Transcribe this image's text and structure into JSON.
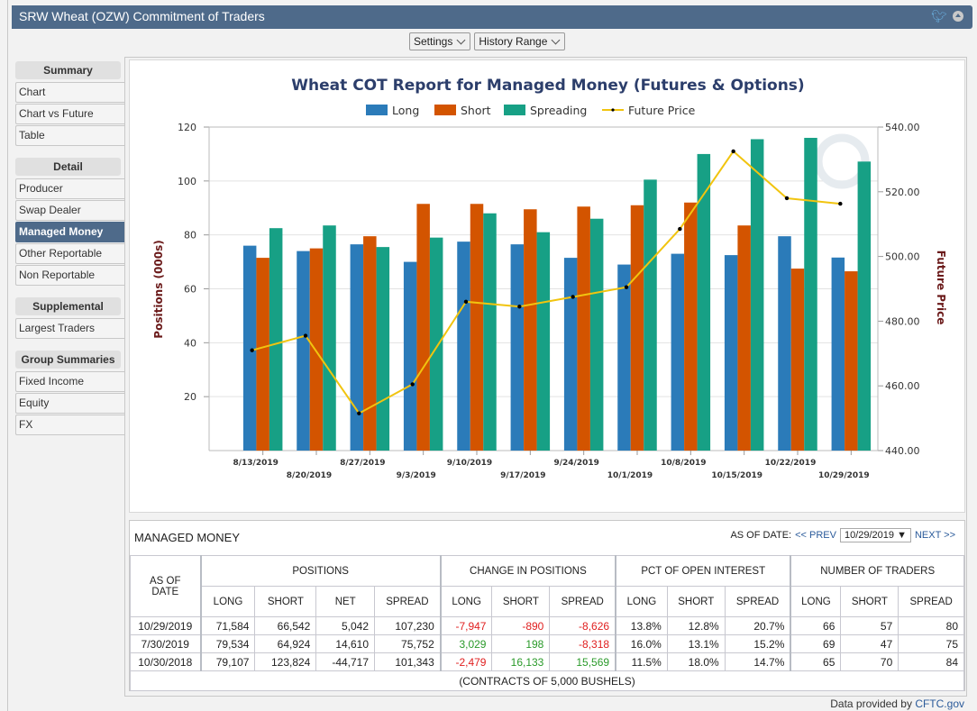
{
  "header": {
    "title": "SRW Wheat (OZW) Commitment of Traders",
    "icons": [
      "twitter-icon",
      "collapse-icon"
    ]
  },
  "toolbar": {
    "settings_label": "Settings",
    "history_label": "History Range"
  },
  "sidebar": {
    "sections": [
      {
        "heading": "Summary",
        "items": [
          "Chart",
          "Chart vs Future",
          "Table"
        ]
      },
      {
        "heading": "Detail",
        "items": [
          "Producer",
          "Swap Dealer",
          "Managed Money",
          "Other Reportable",
          "Non Reportable"
        ]
      },
      {
        "heading": "Supplemental",
        "items": [
          "Largest Traders"
        ]
      },
      {
        "heading": "Group Summaries",
        "items": [
          "Fixed Income",
          "Equity",
          "FX"
        ]
      }
    ],
    "active_item": "Managed Money"
  },
  "colors": {
    "long": "#2b7bb9",
    "short": "#d35400",
    "spreading": "#17a085",
    "price": "#f1c40f",
    "axis_label": "#6b1a1a",
    "title": "#2c3e6b"
  },
  "chart_data": {
    "type": "bar",
    "title": "Wheat COT Report for Managed Money (Futures & Options)",
    "legend": [
      "Long",
      "Short",
      "Spreading",
      "Future Price"
    ],
    "legend_position": "top-center",
    "categories": [
      "8/13/2019",
      "8/20/2019",
      "8/27/2019",
      "9/3/2019",
      "9/10/2019",
      "9/17/2019",
      "9/24/2019",
      "10/1/2019",
      "10/8/2019",
      "10/15/2019",
      "10/22/2019",
      "10/29/2019"
    ],
    "series": [
      {
        "name": "Long",
        "type": "bar",
        "axis": "left",
        "values": [
          76,
          74,
          76.5,
          70,
          77.5,
          76.5,
          71.5,
          69,
          73,
          72.5,
          79.5,
          71.6
        ]
      },
      {
        "name": "Short",
        "type": "bar",
        "axis": "left",
        "values": [
          71.5,
          75,
          79.5,
          91.5,
          91.5,
          89.5,
          90.5,
          91,
          92,
          83.5,
          67.5,
          66.5
        ]
      },
      {
        "name": "Spreading",
        "type": "bar",
        "axis": "left",
        "values": [
          82.5,
          83.5,
          75.5,
          79,
          88,
          81,
          86,
          100.5,
          110,
          115.5,
          116,
          107.2
        ]
      },
      {
        "name": "Future Price",
        "type": "line",
        "axis": "right",
        "values": [
          471,
          475.5,
          451.5,
          460.5,
          486,
          484.5,
          487.5,
          490.5,
          508.5,
          532.5,
          518,
          516.3
        ]
      }
    ],
    "ylabel": "Positions (000s)",
    "y2label": "Future Price",
    "ylim": [
      0,
      120
    ],
    "yticks": [
      20,
      40,
      60,
      80,
      100,
      120
    ],
    "y2lim": [
      440,
      540
    ],
    "y2ticks": [
      "440.00",
      "460.00",
      "480.00",
      "500.00",
      "520.00",
      "540.00"
    ],
    "grid": true
  },
  "table": {
    "title": "MANAGED MONEY",
    "as_of_label": "AS OF DATE:",
    "prev_label": "<< PREV",
    "next_label": "NEXT >>",
    "selected_date": "10/29/2019 ▼",
    "date_header": "AS OF DATE",
    "groups": [
      "POSITIONS",
      "CHANGE IN POSITIONS",
      "PCT OF OPEN INTEREST",
      "NUMBER OF TRADERS"
    ],
    "subheaders": [
      "LONG",
      "SHORT",
      "NET",
      "SPREAD",
      "LONG",
      "SHORT",
      "SPREAD",
      "LONG",
      "SHORT",
      "SPREAD",
      "LONG",
      "SHORT",
      "SPREAD"
    ],
    "rows": [
      {
        "date": "10/29/2019",
        "cells": [
          "71,584",
          "66,542",
          "5,042",
          "107,230",
          "-7,947",
          "-890",
          "-8,626",
          "13.8%",
          "12.8%",
          "20.7%",
          "66",
          "57",
          "80"
        ]
      },
      {
        "date": "7/30/2019",
        "cells": [
          "79,534",
          "64,924",
          "14,610",
          "75,752",
          "3,029",
          "198",
          "-8,318",
          "16.0%",
          "13.1%",
          "15.2%",
          "69",
          "47",
          "75"
        ]
      },
      {
        "date": "10/30/2018",
        "cells": [
          "79,107",
          "123,824",
          "-44,717",
          "101,343",
          "-2,479",
          "16,133",
          "15,569",
          "11.5%",
          "18.0%",
          "14.7%",
          "65",
          "70",
          "84"
        ]
      }
    ],
    "footer": "(CONTRACTS OF 5,000 BUSHELS)"
  },
  "credit": {
    "prefix": "Data provided by ",
    "link": "CFTC.gov"
  }
}
